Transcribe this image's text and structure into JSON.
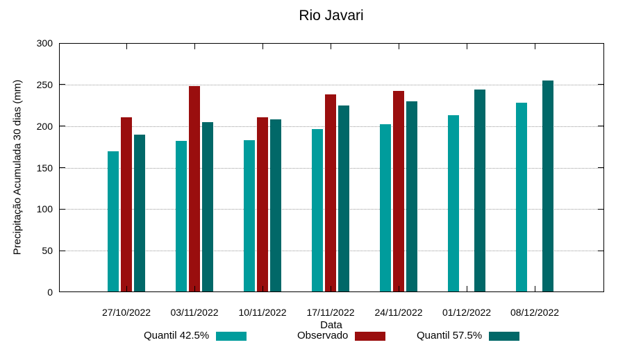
{
  "title": "Rio Javari",
  "axes": {
    "y_label": "Precipitação Acumulada 30 dias (mm)",
    "x_label": "Data"
  },
  "colors": {
    "quantil_low": "#009C9C",
    "observado": "#9A0E0E",
    "quantil_high": "#016868",
    "grid": "#999999",
    "axis": "#000000",
    "background": "#FFFFFF"
  },
  "legend": [
    {
      "label": "Quantil 42.5%",
      "color": "#009C9C"
    },
    {
      "label": "Observado",
      "color": "#9A0E0E"
    },
    {
      "label": "Quantil 57.5%",
      "color": "#016868"
    }
  ],
  "chart_data": {
    "type": "bar",
    "title": "Rio Javari",
    "xlabel": "Data",
    "ylabel": "Precipitação Acumulada 30 dias (mm)",
    "categories": [
      "27/10/2022",
      "03/11/2022",
      "10/11/2022",
      "17/11/2022",
      "24/11/2022",
      "01/12/2022",
      "08/12/2022"
    ],
    "series": [
      {
        "name": "Quantil 42.5%",
        "color": "#009C9C",
        "values": [
          170,
          182,
          183,
          196,
          202,
          213,
          228
        ]
      },
      {
        "name": "Observado",
        "color": "#9A0E0E",
        "values": [
          211,
          248,
          211,
          238,
          242,
          null,
          null
        ]
      },
      {
        "name": "Quantil 57.5%",
        "color": "#016868",
        "values": [
          190,
          205,
          208,
          225,
          230,
          244,
          255
        ]
      }
    ],
    "ylim": [
      0,
      300
    ],
    "y_ticks": [
      0,
      50,
      100,
      150,
      200,
      250,
      300
    ],
    "grid": true,
    "grid_style": "dotted",
    "legend_position": "below"
  }
}
